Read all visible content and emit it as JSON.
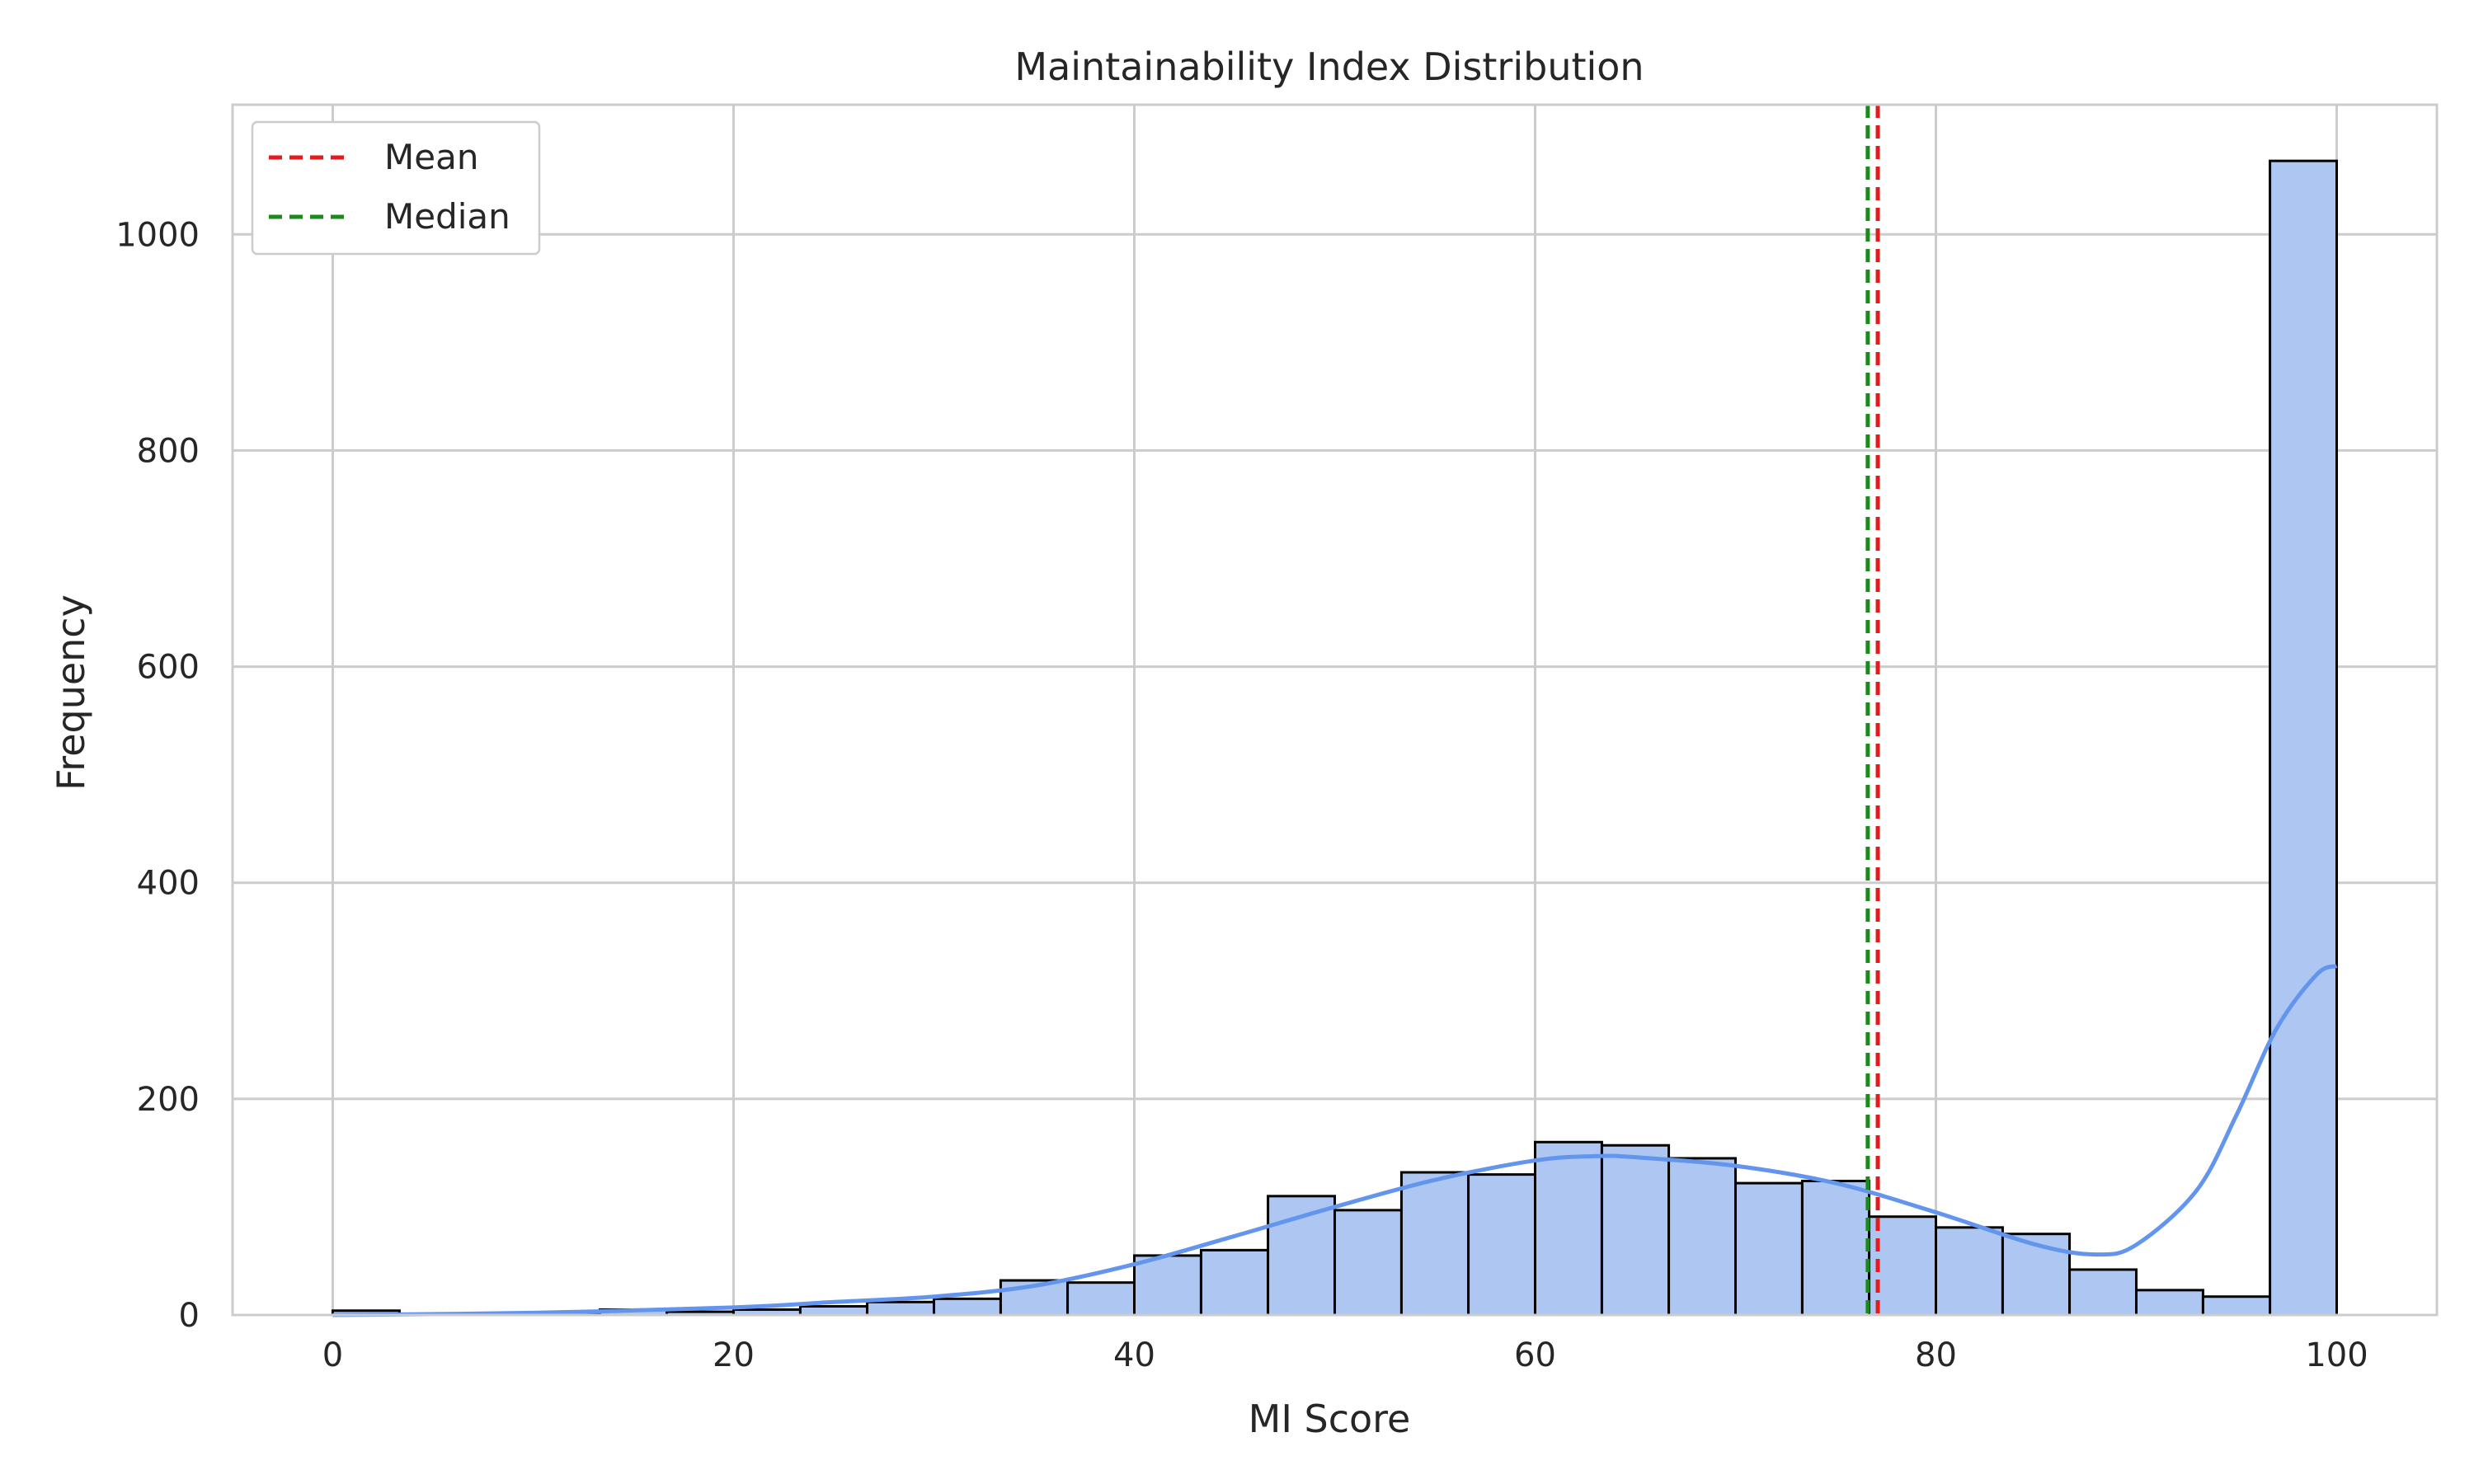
{
  "chart_data": {
    "type": "bar",
    "title": "Maintainability Index Distribution",
    "xlabel": "MI Score",
    "ylabel": "Frequency",
    "xlim": [
      -5,
      105
    ],
    "ylim": [
      0,
      1120
    ],
    "xticks": [
      0,
      20,
      40,
      60,
      80,
      100
    ],
    "yticks": [
      0,
      200,
      400,
      600,
      800,
      1000
    ],
    "grid": true,
    "legend_placement": "top-left",
    "bin_edges": [
      0,
      3.33,
      6.67,
      10,
      13.33,
      16.67,
      20,
      23.33,
      26.67,
      30,
      33.33,
      36.67,
      40,
      43.33,
      46.67,
      50,
      53.33,
      56.67,
      60,
      63.33,
      66.67,
      70,
      73.33,
      76.67,
      80,
      83.33,
      86.67,
      90,
      93.33,
      96.67,
      100
    ],
    "values": [
      4,
      1,
      1,
      1,
      5,
      3,
      5,
      8,
      12,
      15,
      32,
      30,
      55,
      60,
      110,
      97,
      132,
      130,
      160,
      157,
      145,
      122,
      124,
      91,
      81,
      75,
      42,
      23,
      17,
      1068
    ],
    "kde": {
      "x": [
        0,
        10,
        20,
        25,
        30,
        35,
        40,
        45,
        50,
        55,
        60,
        63,
        65,
        70,
        75,
        80,
        85,
        88,
        90,
        93,
        95,
        97,
        99,
        100
      ],
      "y": [
        0,
        2,
        7,
        12,
        17,
        27,
        47,
        73,
        100,
        125,
        143,
        147,
        146,
        138,
        122,
        95,
        65,
        56,
        65,
        115,
        185,
        265,
        315,
        323
      ]
    },
    "reference_lines": [
      {
        "name": "Mean",
        "x": 77.1,
        "color": "#e41a1c"
      },
      {
        "name": "Median",
        "x": 76.6,
        "color": "#1a8a1a"
      }
    ],
    "colors": {
      "bar_fill": "#aec7f2",
      "bar_edge": "#000000",
      "kde_line": "#6495ed",
      "grid": "#cccccc",
      "frame": "#cccccc"
    }
  }
}
